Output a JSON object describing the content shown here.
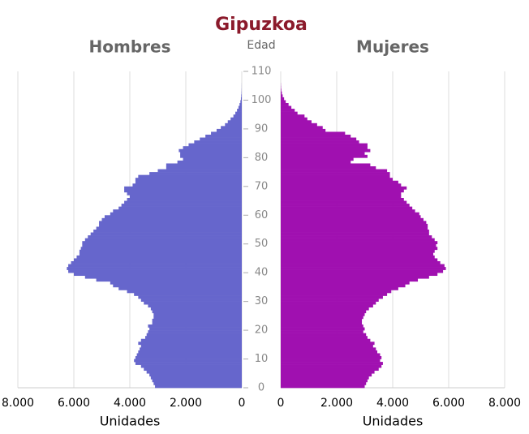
{
  "chart_data": {
    "type": "pyramid",
    "title": "Gipuzkoa",
    "ylabel": "Edad",
    "xlabel": "Unidades",
    "y": [
      0,
      1,
      2,
      3,
      4,
      5,
      6,
      7,
      8,
      9,
      10,
      11,
      12,
      13,
      14,
      15,
      16,
      17,
      18,
      19,
      20,
      21,
      22,
      23,
      24,
      25,
      26,
      27,
      28,
      29,
      30,
      31,
      32,
      33,
      34,
      35,
      36,
      37,
      38,
      39,
      40,
      41,
      42,
      43,
      44,
      45,
      46,
      47,
      48,
      49,
      50,
      51,
      52,
      53,
      54,
      55,
      56,
      57,
      58,
      59,
      60,
      61,
      62,
      63,
      64,
      65,
      66,
      67,
      68,
      69,
      70,
      71,
      72,
      73,
      74,
      75,
      76,
      77,
      78,
      79,
      80,
      81,
      82,
      83,
      84,
      85,
      86,
      87,
      88,
      89,
      90,
      91,
      92,
      93,
      94,
      95,
      96,
      97,
      98,
      99,
      100,
      101,
      102,
      103,
      104,
      105
    ],
    "ylim": [
      0,
      110
    ],
    "yticks": [
      0,
      10,
      20,
      30,
      40,
      50,
      60,
      70,
      80,
      90,
      100,
      110
    ],
    "xlim": [
      0,
      8000
    ],
    "xticks": [
      0,
      {
        "value": 2000,
        "label": "2.000"
      },
      {
        "value": 4000,
        "label": "4.000"
      },
      {
        "value": 6000,
        "label": "6.000"
      },
      {
        "value": 8000,
        "label": "8.000"
      }
    ],
    "grid": true,
    "series": [
      {
        "name": "Hombres",
        "color": "#6666cc",
        "side": "left",
        "values": [
          3100,
          3150,
          3200,
          3250,
          3300,
          3400,
          3500,
          3600,
          3800,
          3850,
          3800,
          3750,
          3700,
          3650,
          3600,
          3700,
          3600,
          3450,
          3400,
          3350,
          3300,
          3350,
          3200,
          3200,
          3150,
          3150,
          3200,
          3250,
          3350,
          3500,
          3600,
          3700,
          3850,
          4100,
          4400,
          4600,
          4700,
          5200,
          5600,
          6000,
          6200,
          6250,
          6200,
          6100,
          6000,
          5900,
          5800,
          5800,
          5750,
          5700,
          5700,
          5600,
          5500,
          5400,
          5300,
          5200,
          5100,
          5100,
          5000,
          4900,
          4700,
          4600,
          4400,
          4300,
          4200,
          4100,
          4000,
          4100,
          4200,
          4200,
          3900,
          3800,
          3800,
          3700,
          3300,
          3000,
          2700,
          2700,
          2300,
          2100,
          2200,
          2200,
          2250,
          2100,
          1900,
          1700,
          1500,
          1300,
          1100,
          900,
          750,
          600,
          500,
          400,
          300,
          230,
          170,
          120,
          80,
          50,
          30,
          20,
          10,
          6,
          3,
          2
        ]
      },
      {
        "name": "Mujeres",
        "color": "#a010b0",
        "side": "right",
        "values": [
          3000,
          3050,
          3100,
          3150,
          3250,
          3350,
          3500,
          3600,
          3650,
          3550,
          3600,
          3550,
          3450,
          3400,
          3300,
          3350,
          3200,
          3100,
          3050,
          2950,
          3000,
          2950,
          2900,
          2900,
          2950,
          3000,
          3050,
          3150,
          3300,
          3400,
          3500,
          3650,
          3800,
          3950,
          4200,
          4450,
          4600,
          4900,
          5300,
          5600,
          5800,
          5900,
          5850,
          5700,
          5600,
          5500,
          5450,
          5500,
          5600,
          5550,
          5600,
          5500,
          5400,
          5300,
          5300,
          5250,
          5250,
          5200,
          5100,
          5000,
          4950,
          4800,
          4700,
          4600,
          4500,
          4400,
          4300,
          4300,
          4400,
          4500,
          4300,
          4200,
          4000,
          3900,
          3900,
          3800,
          3400,
          3200,
          2500,
          2600,
          3100,
          3000,
          3200,
          3100,
          3100,
          2800,
          2700,
          2500,
          2300,
          1600,
          1500,
          1300,
          1100,
          950,
          850,
          600,
          500,
          380,
          280,
          180,
          120,
          70,
          40,
          20,
          10,
          5
        ]
      }
    ]
  }
}
